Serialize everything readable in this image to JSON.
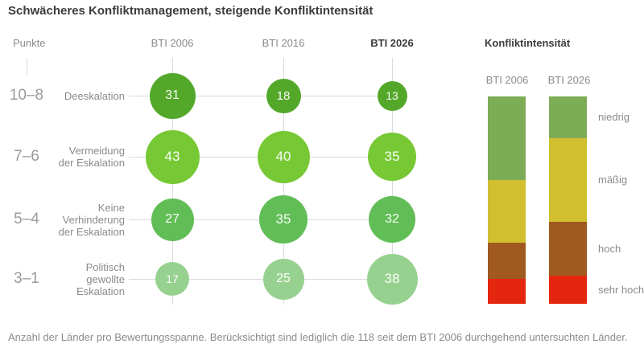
{
  "title": "Schwächeres Konfliktmanagement, steigende Konfliktintensität",
  "footnote": "Anzahl der Länder pro Bewertungsspanne. Berücksichtigt sind lediglich die 118 seit dem BTI 2006 durchgehend untersuchten Länder.",
  "colors": {
    "title_text": "#3c3c3b",
    "label_text": "#8b8b8b",
    "scale_text": "#9b9b9b",
    "gridline": "#dadada",
    "bubble_value_text": "#ffffff"
  },
  "chart_data": [
    {
      "type": "scatter",
      "subtype": "bubble-matrix",
      "title": "Schwächeres Konfliktmanagement, steigende Konfliktintensität",
      "points_axis_label": "Punkte",
      "sizing": "bubble area proportional to value (number of countries)",
      "columns": [
        {
          "label": "BTI 2006",
          "emphasis": false
        },
        {
          "label": "BTI 2016",
          "emphasis": false
        },
        {
          "label": "BTI 2026",
          "emphasis": true
        }
      ],
      "rows": [
        {
          "points_range": "10–8",
          "label": "Deeskalation",
          "label_lines": [
            "Deeskalation"
          ],
          "color": "#53a82a",
          "values": [
            31,
            18,
            13
          ]
        },
        {
          "points_range": "7–6",
          "label": "Vermeidung der Eskalation",
          "label_lines": [
            "Vermeidung",
            "der Eskalation"
          ],
          "color": "#76c834",
          "values": [
            43,
            40,
            35
          ]
        },
        {
          "points_range": "5–4",
          "label": "Keine Verhinderung der Eskalation",
          "label_lines": [
            "Keine",
            "Verhinderung",
            "der Eskalation"
          ],
          "color": "#61bd55",
          "values": [
            27,
            35,
            32
          ]
        },
        {
          "points_range": "3–1",
          "label": "Politisch gewollte Eskalation",
          "label_lines": [
            "Politisch",
            "gewollte",
            "Eskalation"
          ],
          "color": "#97d190",
          "values": [
            17,
            25,
            38
          ]
        }
      ]
    },
    {
      "type": "bar",
      "subtype": "stacked-100pct",
      "title": "Konfliktintensität",
      "categories": [
        "BTI 2006",
        "BTI 2026"
      ],
      "legend_position": "right",
      "series": [
        {
          "name": "niedrig",
          "color": "#7dac56",
          "values_pct": [
            40.3,
            20.2
          ]
        },
        {
          "name": "mäßig",
          "color": "#d1bf30",
          "values_pct": [
            30.2,
            40.3
          ]
        },
        {
          "name": "hoch",
          "color": "#a0591f",
          "values_pct": [
            17.4,
            26.0
          ]
        },
        {
          "name": "sehr hoch",
          "color": "#e5260f",
          "values_pct": [
            12.1,
            13.5
          ]
        }
      ]
    }
  ]
}
